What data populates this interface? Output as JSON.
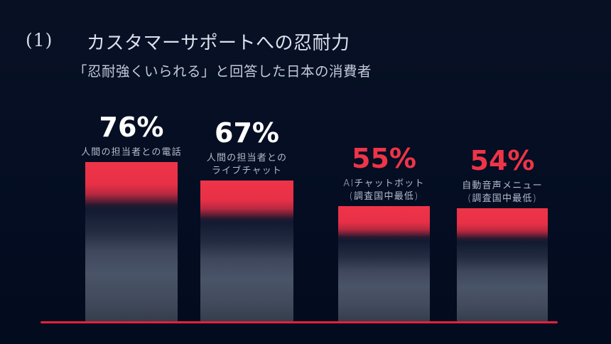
{
  "header": {
    "number": "(1)",
    "title": "カスタマーサポートへの忍耐力",
    "subtitle": "「忍耐強くいられる」と回答した日本の消費者"
  },
  "chart_data": {
    "type": "bar",
    "orientation": "vertical",
    "title": "カスタマーサポートへの忍耐力",
    "subtitle": "「忍耐強くいられる」と回答した日本の消費者",
    "unit": "%",
    "ylim": [
      0,
      100
    ],
    "grid": false,
    "legend": "none",
    "pixels_per_percent": 2.95,
    "categories": [
      "人間の担当者との電話",
      "人間の担当者との ライブチャット",
      "AIチャットボット (調査国中最低)",
      "自動音声メニュー (調査国中最低)"
    ],
    "values": [
      76,
      67,
      55,
      54
    ],
    "bars": [
      {
        "value": 76,
        "value_label": "76%",
        "value_color": "#ffffff",
        "label_lines": [
          "人間の担当者との電話"
        ]
      },
      {
        "value": 67,
        "value_label": "67%",
        "value_color": "#ffffff",
        "label_lines": [
          "人間の担当者との",
          "ライブチャット"
        ]
      },
      {
        "value": 55,
        "value_label": "55%",
        "value_color": "#ee3448",
        "label_lines": [
          "AIチャットボット",
          "(調査国中最低)"
        ]
      },
      {
        "value": 54,
        "value_label": "54%",
        "value_color": "#ee3448",
        "label_lines": [
          "自動音声メニュー",
          "(調査国中最低)"
        ]
      }
    ],
    "colors": {
      "background": "#040d22",
      "bar_cap_red": "#ef3449",
      "bar_body_slate": "#4a5468",
      "baseline_red": "#e7203a",
      "value_white": "#ffffff",
      "value_red": "#ee3448",
      "label_gray": "#b4bccc",
      "title_gray": "#dde1ee"
    }
  }
}
